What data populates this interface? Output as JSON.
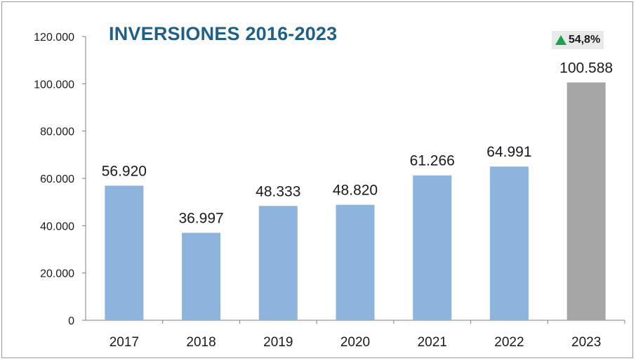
{
  "chart_data": {
    "type": "bar",
    "title": "INVERSIONES 2016-2023",
    "categories": [
      "2017",
      "2018",
      "2019",
      "2020",
      "2021",
      "2022",
      "2023"
    ],
    "values": [
      56920,
      36997,
      48333,
      48820,
      61266,
      64991,
      100588
    ],
    "data_labels": [
      "56.920",
      "36.997",
      "48.333",
      "48.820",
      "61.266",
      "64.991",
      "100.588"
    ],
    "yticks": [
      "0",
      "20.000",
      "40.000",
      "60.000",
      "80.000",
      "100.000",
      "120.000"
    ],
    "ytick_values": [
      0,
      20000,
      40000,
      60000,
      80000,
      100000,
      120000
    ],
    "ylim": [
      0,
      120000
    ],
    "xlabel": "",
    "ylabel": "",
    "grid": false,
    "colors": {
      "default": "#8db4dc",
      "highlight": "#a6a6a6"
    },
    "highlight_index": 6,
    "badge": {
      "text": "54,8%",
      "icon": "up-triangle-icon",
      "color": "#1aa34a"
    }
  }
}
